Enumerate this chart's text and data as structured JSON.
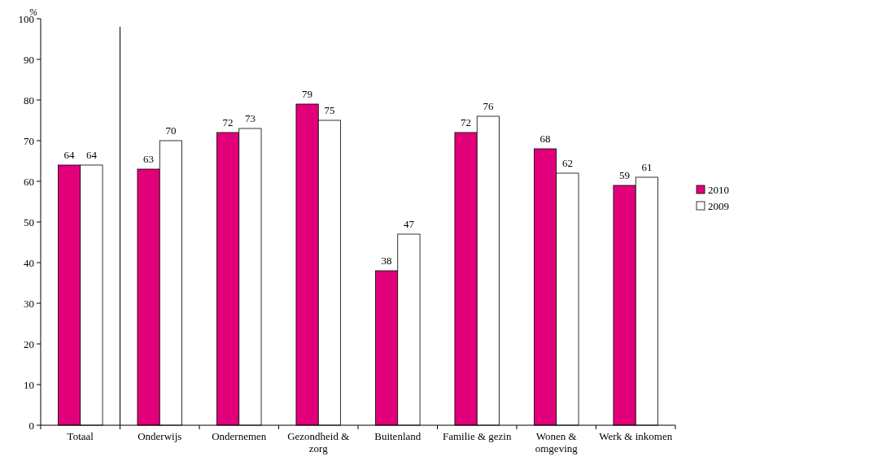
{
  "chart_data": {
    "type": "bar",
    "ylabel": "%",
    "categories": [
      "Totaal",
      "Onderwijs",
      "Ondernemen",
      "Gezondheid & zorg",
      "Buitenland",
      "Familie & gezin",
      "Wonen & omgeving",
      "Werk & inkomen"
    ],
    "series": [
      {
        "name": "2010",
        "color": "#e2007a",
        "values": [
          64,
          63,
          72,
          79,
          38,
          72,
          68,
          59
        ]
      },
      {
        "name": "2009",
        "color": "#ffffff",
        "values": [
          64,
          70,
          73,
          75,
          47,
          76,
          62,
          61
        ]
      }
    ],
    "ylim": [
      0,
      100
    ],
    "yticks": [
      0,
      10,
      20,
      30,
      40,
      50,
      60,
      70,
      80,
      90,
      100
    ],
    "data_labels": true,
    "legend": "right",
    "grid": false
  }
}
